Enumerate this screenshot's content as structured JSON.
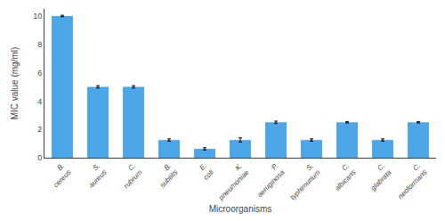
{
  "chart_data": {
    "type": "bar",
    "categories": [
      "B. cereus",
      "S. aureus",
      "C. rubrum",
      "B. subtilis",
      "E. coli",
      "K. pneumoniae",
      "P. aeruginosa",
      "S. typhimurium",
      "C. albicans",
      "C. glabrata",
      "C. neoformans"
    ],
    "values": [
      10.0,
      5.0,
      5.0,
      1.25,
      0.625,
      1.25,
      2.5,
      1.25,
      2.5,
      1.25,
      2.5
    ],
    "errors": [
      0.05,
      0.08,
      0.08,
      0.08,
      0.08,
      0.15,
      0.08,
      0.08,
      0.05,
      0.08,
      0.05
    ],
    "color": "#4da6e8",
    "xlabel": "Microorganisms",
    "ylabel": "MIC value (mg/ml)",
    "ylim": [
      0,
      10.5
    ],
    "yticks": [
      0,
      2,
      4,
      6,
      8,
      10
    ],
    "grid": false
  }
}
